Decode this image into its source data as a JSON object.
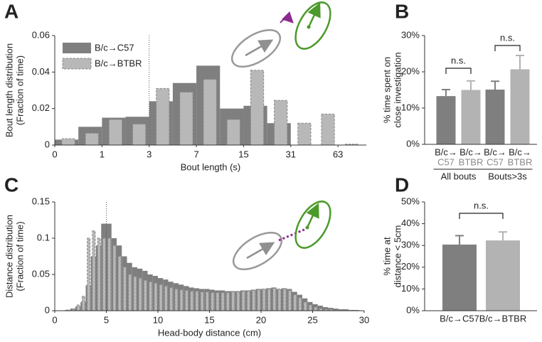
{
  "chart_data": [
    {
      "type": "histogram",
      "panel": "A",
      "ylabel": [
        "Bout length distribution",
        "(Fraction of time)"
      ],
      "xlabel": "Bout length (s)",
      "bins": [
        0,
        0.5,
        1,
        1.5,
        2,
        2.5,
        3,
        3.5,
        4,
        4.5,
        5,
        5.5,
        6,
        6.5
      ],
      "xlim": [
        0,
        6.6
      ],
      "ylim": [
        0,
        0.06
      ],
      "xticks": [
        0,
        1,
        {
          "value": 2,
          "label": "3"
        },
        {
          "value": 3,
          "label": "7"
        },
        {
          "value": 4,
          "label": "15"
        },
        {
          "value": 5,
          "label": "31"
        },
        {
          "value": 6,
          "label": "63"
        }
      ],
      "yticks": [
        0,
        0.02,
        0.04,
        0.06
      ],
      "legend": true,
      "series": [
        {
          "name": "B/c→C57",
          "color": "#7f7f7f",
          "style": "solid",
          "values": [
            0.003,
            0.01,
            0.015,
            0.0155,
            0.024,
            0.034,
            0.0435,
            0.02,
            0.0215,
            0.012,
            0,
            0,
            0
          ]
        },
        {
          "name": "B/c→BTBR",
          "color": "#b8b8b8",
          "style": "dashed",
          "values": [
            0.0035,
            0.0065,
            0.014,
            0.0115,
            0.031,
            0.029,
            0.036,
            0.014,
            0.041,
            0.0245,
            0.012,
            0.017,
            0.0005
          ]
        }
      ]
    },
    {
      "type": "bar",
      "panel": "B",
      "ylabel": [
        "% time spent on",
        "close investigation"
      ],
      "categories": [
        [
          "B/c→",
          "C57"
        ],
        [
          "B/c→",
          "BTBR"
        ],
        [
          "B/c→",
          "C57"
        ],
        [
          "B/c→",
          "BTBR"
        ]
      ],
      "group_labels": [
        "All bouts",
        "Bouts>3s"
      ],
      "annotations": [
        "n.s.",
        "n.s."
      ],
      "values": [
        13.3,
        15,
        15.1,
        20.7
      ],
      "errors": [
        1.8,
        2.5,
        2.3,
        3.8
      ],
      "colors": [
        "#7f7f7f",
        "#b3b3b3",
        "#7f7f7f",
        "#b3b3b3"
      ],
      "ylim": [
        0,
        30
      ],
      "yticks": [
        {
          "value": 0,
          "label": "0%"
        },
        {
          "value": 10,
          "label": "10%"
        },
        {
          "value": 20,
          "label": "20%"
        },
        {
          "value": 30,
          "label": "30%"
        }
      ]
    },
    {
      "type": "histogram",
      "panel": "C",
      "ylabel": [
        "Distance distribution",
        "(Fraction of time)"
      ],
      "xlabel": "Head-body distance (cm)",
      "bins": [
        0,
        0.5,
        1,
        1.5,
        2,
        2.5,
        3,
        3.5,
        4,
        4.5,
        5,
        5.5,
        6,
        6.5,
        7,
        7.5,
        8,
        8.5,
        9,
        9.5,
        10,
        10.5,
        11,
        11.5,
        12,
        12.5,
        13,
        13.5,
        14,
        14.5,
        15,
        15.5,
        16,
        16.5,
        17,
        17.5,
        18,
        18.5,
        19,
        19.5,
        20,
        20.5,
        21,
        21.5,
        22,
        22.5,
        23,
        23.5,
        24,
        24.5,
        25,
        25.5,
        26,
        26.5,
        27,
        27.5,
        28,
        28.5,
        29,
        29.5,
        30
      ],
      "xlim": [
        0,
        30
      ],
      "ylim": [
        0,
        0.15
      ],
      "xticks": [
        0,
        5,
        10,
        15,
        20,
        25,
        30
      ],
      "yticks": [
        0,
        0.05,
        0.1,
        0.15
      ],
      "legend": false,
      "series": [
        {
          "name": "B/c→C57",
          "color": "#7f7f7f",
          "style": "solid",
          "values": [
            0,
            0,
            0.001,
            0.003,
            0.006,
            0.012,
            0.035,
            0.075,
            0.09,
            0.12,
            0.12,
            0.1,
            0.09,
            0.075,
            0.066,
            0.06,
            0.058,
            0.055,
            0.05,
            0.048,
            0.045,
            0.043,
            0.04,
            0.038,
            0.036,
            0.034,
            0.032,
            0.031,
            0.03,
            0.03,
            0.029,
            0.028,
            0.028,
            0.027,
            0.027,
            0.027,
            0.028,
            0.028,
            0.029,
            0.03,
            0.03,
            0.031,
            0.032,
            0.03,
            0.031,
            0.03,
            0.026,
            0.022,
            0.017,
            0.012,
            0.009,
            0.007,
            0.005,
            0.004,
            0.003,
            0.002,
            0.002,
            0.001,
            0.001,
            0
          ]
        },
        {
          "name": "B/c→BTBR",
          "color": "#b8b8b8",
          "style": "dashed",
          "values": [
            0,
            0,
            0.001,
            0.002,
            0.008,
            0.02,
            0.1,
            0.11,
            0.1,
            0.1,
            0.1,
            0.09,
            0.075,
            0.06,
            0.05,
            0.047,
            0.045,
            0.042,
            0.04,
            0.038,
            0.036,
            0.034,
            0.032,
            0.03,
            0.029,
            0.028,
            0.027,
            0.027,
            0.026,
            0.026,
            0.025,
            0.025,
            0.025,
            0.025,
            0.026,
            0.026,
            0.027,
            0.027,
            0.028,
            0.029,
            0.03,
            0.03,
            0.031,
            0.03,
            0.03,
            0.028,
            0.022,
            0.018,
            0.012,
            0.008,
            0.005,
            0.003,
            0.002,
            0.002,
            0.001,
            0.001,
            0.001,
            0,
            0,
            0
          ]
        }
      ]
    },
    {
      "type": "bar",
      "panel": "D",
      "ylabel": [
        "% time at",
        "distance < 5cm"
      ],
      "categories": [
        "B/c→C57",
        "B/c→BTBR"
      ],
      "annotations": [
        "n.s."
      ],
      "values": [
        30.4,
        32.3
      ],
      "errors": [
        4.1,
        3.9
      ],
      "colors": [
        "#7f7f7f",
        "#b3b3b3"
      ],
      "ylim": [
        0,
        50
      ],
      "yticks": [
        {
          "value": 0,
          "label": "0%"
        },
        {
          "value": 10,
          "label": "10%"
        },
        {
          "value": 20,
          "label": "20%"
        },
        {
          "value": 30,
          "label": "30%"
        },
        {
          "value": 40,
          "label": "40%"
        },
        {
          "value": 50,
          "label": "50%"
        }
      ]
    }
  ]
}
